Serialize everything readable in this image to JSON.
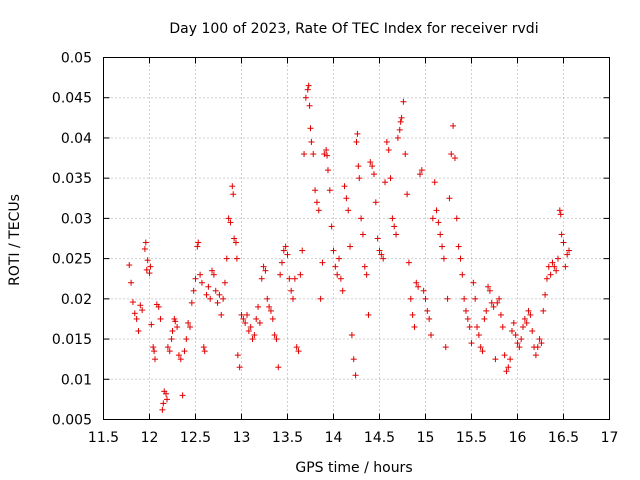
{
  "chart_data": {
    "type": "scatter",
    "title": "Day 100 of 2023, Rate Of TEC Index for receiver rvdi",
    "xlabel": "GPS time / hours",
    "ylabel": "ROTI / TECUs",
    "xlim": [
      11.5,
      17
    ],
    "ylim": [
      0.005,
      0.05
    ],
    "grid": true,
    "marker": "+",
    "color": "#e00000",
    "x_ticks": [
      "11.5",
      "12",
      "12.5",
      "13",
      "13.5",
      "14",
      "14.5",
      "15",
      "15.5",
      "16",
      "16.5",
      "17"
    ],
    "y_ticks": [
      "0.005",
      "0.01",
      "0.015",
      "0.02",
      "0.025",
      "0.03",
      "0.035",
      "0.04",
      "0.045",
      "0.05"
    ],
    "series": [
      {
        "name": "rvdi",
        "points": [
          [
            11.78,
            0.0242
          ],
          [
            11.8,
            0.022
          ],
          [
            11.82,
            0.0196
          ],
          [
            11.84,
            0.0182
          ],
          [
            11.86,
            0.0175
          ],
          [
            11.88,
            0.016
          ],
          [
            11.9,
            0.0192
          ],
          [
            11.92,
            0.0186
          ],
          [
            11.95,
            0.0262
          ],
          [
            11.96,
            0.027
          ],
          [
            11.97,
            0.0236
          ],
          [
            11.98,
            0.0248
          ],
          [
            12.0,
            0.0232
          ],
          [
            12.01,
            0.024
          ],
          [
            12.02,
            0.0168
          ],
          [
            12.04,
            0.014
          ],
          [
            12.05,
            0.0135
          ],
          [
            12.06,
            0.0125
          ],
          [
            12.08,
            0.0193
          ],
          [
            12.1,
            0.019
          ],
          [
            12.12,
            0.0175
          ],
          [
            12.14,
            0.0062
          ],
          [
            12.15,
            0.007
          ],
          [
            12.16,
            0.0085
          ],
          [
            12.18,
            0.0082
          ],
          [
            12.19,
            0.0075
          ],
          [
            12.2,
            0.014
          ],
          [
            12.22,
            0.0135
          ],
          [
            12.24,
            0.015
          ],
          [
            12.25,
            0.016
          ],
          [
            12.27,
            0.0175
          ],
          [
            12.28,
            0.0172
          ],
          [
            12.3,
            0.0165
          ],
          [
            12.32,
            0.013
          ],
          [
            12.34,
            0.0125
          ],
          [
            12.36,
            0.008
          ],
          [
            12.38,
            0.0135
          ],
          [
            12.4,
            0.015
          ],
          [
            12.42,
            0.017
          ],
          [
            12.44,
            0.0165
          ],
          [
            12.46,
            0.0195
          ],
          [
            12.48,
            0.021
          ],
          [
            12.5,
            0.0225
          ],
          [
            12.52,
            0.0265
          ],
          [
            12.53,
            0.027
          ],
          [
            12.55,
            0.023
          ],
          [
            12.57,
            0.022
          ],
          [
            12.59,
            0.014
          ],
          [
            12.6,
            0.0135
          ],
          [
            12.62,
            0.0205
          ],
          [
            12.64,
            0.0215
          ],
          [
            12.66,
            0.02
          ],
          [
            12.68,
            0.0235
          ],
          [
            12.7,
            0.023
          ],
          [
            12.72,
            0.021
          ],
          [
            12.74,
            0.0195
          ],
          [
            12.76,
            0.0205
          ],
          [
            12.78,
            0.018
          ],
          [
            12.8,
            0.02
          ],
          [
            12.82,
            0.022
          ],
          [
            12.84,
            0.025
          ],
          [
            12.86,
            0.03
          ],
          [
            12.88,
            0.0295
          ],
          [
            12.9,
            0.034
          ],
          [
            12.91,
            0.033
          ],
          [
            12.92,
            0.0275
          ],
          [
            12.94,
            0.027
          ],
          [
            12.95,
            0.025
          ],
          [
            12.96,
            0.013
          ],
          [
            12.98,
            0.0115
          ],
          [
            13.0,
            0.018
          ],
          [
            13.02,
            0.0175
          ],
          [
            13.04,
            0.017
          ],
          [
            13.06,
            0.018
          ],
          [
            13.08,
            0.016
          ],
          [
            13.1,
            0.0165
          ],
          [
            13.12,
            0.015
          ],
          [
            13.14,
            0.0155
          ],
          [
            13.16,
            0.0175
          ],
          [
            13.18,
            0.019
          ],
          [
            13.2,
            0.017
          ],
          [
            13.22,
            0.0225
          ],
          [
            13.24,
            0.024
          ],
          [
            13.26,
            0.0235
          ],
          [
            13.28,
            0.02
          ],
          [
            13.3,
            0.019
          ],
          [
            13.32,
            0.0185
          ],
          [
            13.34,
            0.0175
          ],
          [
            13.36,
            0.0155
          ],
          [
            13.38,
            0.015
          ],
          [
            13.4,
            0.0115
          ],
          [
            13.42,
            0.023
          ],
          [
            13.44,
            0.0245
          ],
          [
            13.46,
            0.026
          ],
          [
            13.48,
            0.0265
          ],
          [
            13.5,
            0.0255
          ],
          [
            13.52,
            0.0225
          ],
          [
            13.54,
            0.021
          ],
          [
            13.56,
            0.02
          ],
          [
            13.58,
            0.0225
          ],
          [
            13.6,
            0.014
          ],
          [
            13.62,
            0.0135
          ],
          [
            13.64,
            0.023
          ],
          [
            13.66,
            0.026
          ],
          [
            13.68,
            0.038
          ],
          [
            13.7,
            0.045
          ],
          [
            13.72,
            0.046
          ],
          [
            13.73,
            0.0465
          ],
          [
            13.74,
            0.044
          ],
          [
            13.75,
            0.0412
          ],
          [
            13.76,
            0.0395
          ],
          [
            13.78,
            0.038
          ],
          [
            13.8,
            0.0335
          ],
          [
            13.82,
            0.032
          ],
          [
            13.84,
            0.031
          ],
          [
            13.86,
            0.02
          ],
          [
            13.88,
            0.0245
          ],
          [
            13.9,
            0.038
          ],
          [
            13.92,
            0.0385
          ],
          [
            13.93,
            0.0378
          ],
          [
            13.94,
            0.036
          ],
          [
            13.96,
            0.0335
          ],
          [
            13.98,
            0.029
          ],
          [
            14.0,
            0.026
          ],
          [
            14.02,
            0.024
          ],
          [
            14.04,
            0.023
          ],
          [
            14.06,
            0.025
          ],
          [
            14.08,
            0.0225
          ],
          [
            14.1,
            0.021
          ],
          [
            14.12,
            0.034
          ],
          [
            14.14,
            0.0325
          ],
          [
            14.16,
            0.031
          ],
          [
            14.18,
            0.0265
          ],
          [
            14.2,
            0.0155
          ],
          [
            14.22,
            0.0125
          ],
          [
            14.24,
            0.0105
          ],
          [
            14.25,
            0.0395
          ],
          [
            14.26,
            0.0405
          ],
          [
            14.27,
            0.0365
          ],
          [
            14.28,
            0.035
          ],
          [
            14.3,
            0.03
          ],
          [
            14.32,
            0.028
          ],
          [
            14.34,
            0.024
          ],
          [
            14.36,
            0.023
          ],
          [
            14.38,
            0.018
          ],
          [
            14.4,
            0.037
          ],
          [
            14.42,
            0.0365
          ],
          [
            14.44,
            0.0355
          ],
          [
            14.46,
            0.032
          ],
          [
            14.48,
            0.0275
          ],
          [
            14.5,
            0.026
          ],
          [
            14.52,
            0.0255
          ],
          [
            14.54,
            0.025
          ],
          [
            14.56,
            0.0345
          ],
          [
            14.58,
            0.0395
          ],
          [
            14.6,
            0.0385
          ],
          [
            14.62,
            0.035
          ],
          [
            14.64,
            0.03
          ],
          [
            14.66,
            0.029
          ],
          [
            14.68,
            0.028
          ],
          [
            14.7,
            0.04
          ],
          [
            14.72,
            0.041
          ],
          [
            14.73,
            0.042
          ],
          [
            14.74,
            0.0425
          ],
          [
            14.76,
            0.0445
          ],
          [
            14.78,
            0.038
          ],
          [
            14.8,
            0.033
          ],
          [
            14.82,
            0.0245
          ],
          [
            14.84,
            0.02
          ],
          [
            14.86,
            0.018
          ],
          [
            14.88,
            0.0165
          ],
          [
            14.9,
            0.022
          ],
          [
            14.92,
            0.0215
          ],
          [
            14.94,
            0.0355
          ],
          [
            14.96,
            0.036
          ],
          [
            14.98,
            0.021
          ],
          [
            15.0,
            0.02
          ],
          [
            15.02,
            0.0185
          ],
          [
            15.04,
            0.0175
          ],
          [
            15.06,
            0.0155
          ],
          [
            15.08,
            0.03
          ],
          [
            15.1,
            0.0345
          ],
          [
            15.12,
            0.031
          ],
          [
            15.14,
            0.0295
          ],
          [
            15.16,
            0.028
          ],
          [
            15.18,
            0.0265
          ],
          [
            15.2,
            0.025
          ],
          [
            15.22,
            0.014
          ],
          [
            15.24,
            0.02
          ],
          [
            15.26,
            0.0325
          ],
          [
            15.28,
            0.038
          ],
          [
            15.3,
            0.0415
          ],
          [
            15.32,
            0.0375
          ],
          [
            15.34,
            0.03
          ],
          [
            15.36,
            0.0265
          ],
          [
            15.38,
            0.025
          ],
          [
            15.4,
            0.023
          ],
          [
            15.42,
            0.02
          ],
          [
            15.44,
            0.0185
          ],
          [
            15.46,
            0.0175
          ],
          [
            15.48,
            0.0165
          ],
          [
            15.5,
            0.0145
          ],
          [
            15.52,
            0.022
          ],
          [
            15.54,
            0.02
          ],
          [
            15.56,
            0.0165
          ],
          [
            15.58,
            0.0155
          ],
          [
            15.6,
            0.014
          ],
          [
            15.62,
            0.0135
          ],
          [
            15.64,
            0.0175
          ],
          [
            15.66,
            0.0185
          ],
          [
            15.68,
            0.0215
          ],
          [
            15.7,
            0.021
          ],
          [
            15.72,
            0.0195
          ],
          [
            15.74,
            0.019
          ],
          [
            15.76,
            0.0125
          ],
          [
            15.78,
            0.0195
          ],
          [
            15.8,
            0.02
          ],
          [
            15.82,
            0.018
          ],
          [
            15.84,
            0.0165
          ],
          [
            15.86,
            0.013
          ],
          [
            15.88,
            0.011
          ],
          [
            15.9,
            0.0115
          ],
          [
            15.92,
            0.0125
          ],
          [
            15.94,
            0.016
          ],
          [
            15.96,
            0.017
          ],
          [
            15.98,
            0.0155
          ],
          [
            16.0,
            0.0145
          ],
          [
            16.02,
            0.014
          ],
          [
            16.04,
            0.015
          ],
          [
            16.06,
            0.0165
          ],
          [
            16.08,
            0.0175
          ],
          [
            16.1,
            0.017
          ],
          [
            16.12,
            0.0185
          ],
          [
            16.14,
            0.018
          ],
          [
            16.16,
            0.016
          ],
          [
            16.18,
            0.014
          ],
          [
            16.2,
            0.013
          ],
          [
            16.22,
            0.014
          ],
          [
            16.24,
            0.015
          ],
          [
            16.26,
            0.0145
          ],
          [
            16.28,
            0.0185
          ],
          [
            16.3,
            0.0205
          ],
          [
            16.32,
            0.0225
          ],
          [
            16.34,
            0.024
          ],
          [
            16.36,
            0.023
          ],
          [
            16.38,
            0.0245
          ],
          [
            16.4,
            0.024
          ],
          [
            16.42,
            0.0235
          ],
          [
            16.44,
            0.025
          ],
          [
            16.46,
            0.031
          ],
          [
            16.47,
            0.0305
          ],
          [
            16.48,
            0.028
          ],
          [
            16.5,
            0.027
          ],
          [
            16.52,
            0.024
          ],
          [
            16.54,
            0.0255
          ],
          [
            16.56,
            0.026
          ]
        ]
      }
    ]
  }
}
